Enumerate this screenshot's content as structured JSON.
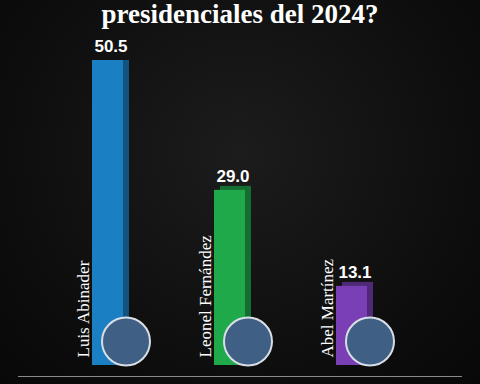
{
  "chart_data": {
    "type": "bar",
    "title": "presidenciales del 2024?",
    "categories": [
      "Luis Abinader",
      "Leonel Fernández",
      "Abel Martínez"
    ],
    "values": [
      50.5,
      29.0,
      13.1
    ],
    "value_labels": [
      "50.5",
      "29.0",
      "13.1"
    ],
    "colors": [
      "#1b7fc4",
      "#1fa94b",
      "#7b3fb5"
    ],
    "ylim": [
      0,
      50.5
    ],
    "data_labels": true,
    "tick_labels": false
  }
}
